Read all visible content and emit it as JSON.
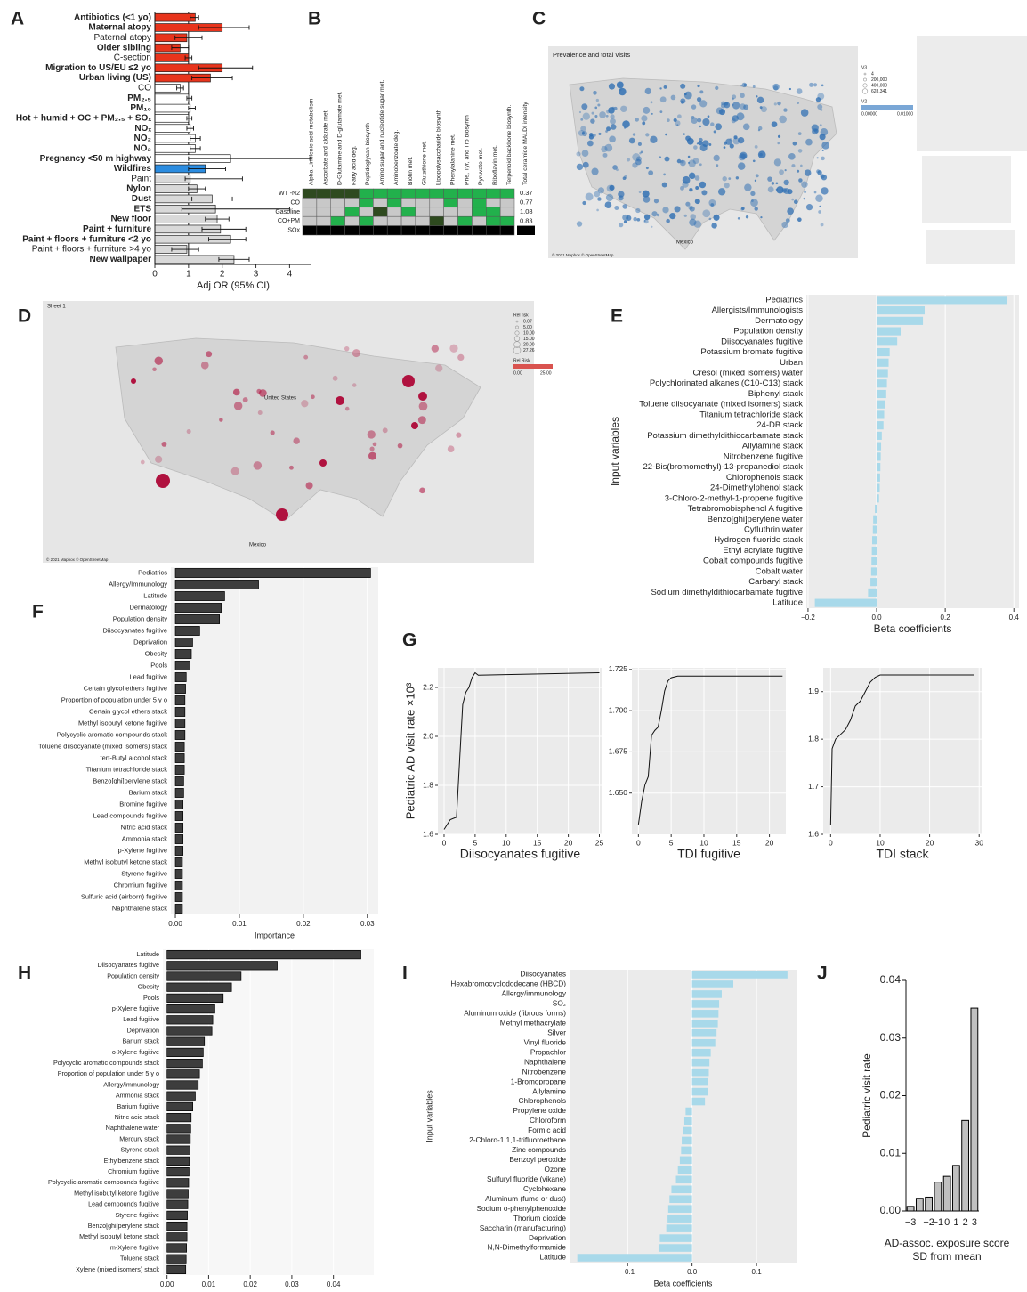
{
  "chart_data": [
    {
      "type": "hbar",
      "panel": "A",
      "xlabel": "Adj OR (95% CI)",
      "categories": [
        "Antibiotics (<1 yo)",
        "Maternal atopy",
        "Paternal atopy",
        "Older sibling",
        "C-section",
        "Migration to US/EU ≤2 yo",
        "Urban living (US)",
        "CO",
        "PM₂.₅",
        "PM₁₀",
        "Hot + humid + OC + PM₂.₅ + SOₓ",
        "NOₓ",
        "NO₂",
        "NO₃",
        "Pregnancy <50 m highway",
        "Wildfires",
        "Paint",
        "Nylon",
        "Dust",
        "ETS",
        "New floor",
        "Paint + furniture",
        "Paint + floors + furniture <2 yo",
        "Paint + floors + furniture >4 yo",
        "New wallpaper"
      ],
      "values": [
        1.2,
        2.0,
        0.95,
        0.75,
        1.0,
        2.0,
        1.65,
        0.75,
        1.0,
        1.05,
        1.0,
        1.05,
        1.2,
        1.2,
        2.25,
        1.5,
        1.05,
        1.25,
        1.7,
        1.8,
        1.85,
        1.95,
        2.25,
        0.95,
        2.35
      ],
      "ci_low": [
        1.05,
        1.3,
        0.6,
        0.5,
        0.9,
        1.3,
        1.1,
        0.65,
        0.95,
        1.0,
        0.95,
        0.95,
        1.05,
        1.05,
        1.0,
        1.0,
        0.9,
        1.0,
        1.1,
        0.8,
        1.5,
        1.4,
        1.6,
        0.5,
        1.9
      ],
      "ci_high": [
        1.3,
        2.8,
        1.4,
        1.0,
        1.1,
        2.9,
        2.3,
        0.85,
        1.1,
        1.2,
        1.1,
        1.15,
        1.35,
        1.35,
        4.6,
        2.1,
        2.6,
        1.5,
        2.3,
        4.0,
        2.2,
        2.7,
        2.7,
        1.3,
        2.8
      ],
      "colors": [
        "#e8341c",
        "#e8341c",
        "#e8341c",
        "#e8341c",
        "#e8341c",
        "#e8341c",
        "#e8341c",
        "#ffffff",
        "#ffffff",
        "#ffffff",
        "#ffffff",
        "#ffffff",
        "#ffffff",
        "#ffffff",
        "#ffffff",
        "#2b8ce0",
        "#d9d9d9",
        "#d9d9d9",
        "#d9d9d9",
        "#d9d9d9",
        "#d9d9d9",
        "#d9d9d9",
        "#d9d9d9",
        "#d9d9d9",
        "#d9d9d9"
      ],
      "label_weights": [
        "bold",
        "bold",
        "normal",
        "bold",
        "normal",
        "bold",
        "bold",
        "normal",
        "bold",
        "bold",
        "bold",
        "bold",
        "bold",
        "bold",
        "bold",
        "bold",
        "normal",
        "bold",
        "bold",
        "bold",
        "bold",
        "bold",
        "bold",
        "normal",
        "bold"
      ],
      "bar_stroke": "#222222",
      "ref_line": 1,
      "xlim": [
        0,
        4.65
      ],
      "xticks": [
        0,
        1,
        2,
        3,
        4
      ],
      "grid": false,
      "axis_lines": true
    },
    {
      "type": "heatmap",
      "panel": "B",
      "columns": [
        "Alpha-Linolenic acid metabolism",
        "Ascorbate and aldarate met.",
        "D-Glutamine and D-glutamate met.",
        "Fatty acid deg.",
        "Peptidoglycan biosynth",
        "Amino sugar and nucleotide sugar met.",
        "Aminobenzoate deg.",
        "Biotin met.",
        "Glutathione met.",
        "Lipopolysaccharide biosynth",
        "Phenylalanine met.",
        "Phe, Tyr, and Trp biosynth",
        "Pyruvate met.",
        "Riboflavin met.",
        "Terpenoid backbone biosynth."
      ],
      "value_column": "Total ceramide MALDI intensity",
      "rows": [
        "WT -N2",
        "CO",
        "Gasoline",
        "CO+PM",
        "SOx"
      ],
      "row_values": [
        0.37,
        0.77,
        1.08,
        0.83,
        null
      ],
      "cells": [
        [
          "#2e4a1f",
          "#2e4a1f",
          "#2e4a1f",
          "#2e4a1f",
          "#22b14c",
          "#22b14c",
          "#22b14c",
          "#22b14c",
          "#22b14c",
          "#22b14c",
          "#22b14c",
          "#22b14c",
          "#22b14c",
          "#22b14c",
          "#22b14c"
        ],
        [
          "#c8c8c8",
          "#c8c8c8",
          "#c8c8c8",
          "#c8c8c8",
          "#22b14c",
          "#c8c8c8",
          "#22b14c",
          "#c8c8c8",
          "#c8c8c8",
          "#c8c8c8",
          "#22b14c",
          "#c8c8c8",
          "#22b14c",
          "#c8c8c8",
          "#c8c8c8"
        ],
        [
          "#c8c8c8",
          "#c8c8c8",
          "#c8c8c8",
          "#22b14c",
          "#c8c8c8",
          "#2e4a1f",
          "#c8c8c8",
          "#22b14c",
          "#c8c8c8",
          "#c8c8c8",
          "#c8c8c8",
          "#c8c8c8",
          "#22b14c",
          "#22b14c",
          "#c8c8c8"
        ],
        [
          "#c8c8c8",
          "#c8c8c8",
          "#22b14c",
          "#c8c8c8",
          "#22b14c",
          "#c8c8c8",
          "#c8c8c8",
          "#c8c8c8",
          "#c8c8c8",
          "#2e4a1f",
          "#c8c8c8",
          "#22b14c",
          "#c8c8c8",
          "#22b14c",
          "#22b14c"
        ],
        [
          "#000000",
          "#000000",
          "#000000",
          "#000000",
          "#000000",
          "#000000",
          "#000000",
          "#000000",
          "#000000",
          "#000000",
          "#000000",
          "#000000",
          "#000000",
          "#000000",
          "#000000"
        ]
      ]
    },
    {
      "type": "map",
      "panel": "C",
      "title": "Prevalence and total visits",
      "size_legend_title": "V3",
      "size_legend_labels": [
        "4",
        "200,000",
        "400,000",
        "628,341"
      ],
      "color_legend_title": "V2",
      "color_legend_labels": [
        "0.00000",
        "0.01000"
      ],
      "place_labels": [
        "Mexico"
      ],
      "credit": "© 2021 Mapbox © OpenStreetMap",
      "color": "#2f6fb3"
    },
    {
      "type": "map",
      "panel": "D",
      "title": "Sheet 1",
      "size_legend_title": "Rel risk",
      "size_legend_labels": [
        "0.07",
        "5.00",
        "10.00",
        "15.00",
        "20.00",
        "27.26"
      ],
      "color_legend_title": "Rel Risk",
      "color_legend_labels": [
        "0.00",
        "25.00"
      ],
      "place_labels": [
        "United States",
        "Mexico"
      ],
      "credit": "© 2021 Mapbox © OpenStreetMap",
      "color": "#b0123f"
    },
    {
      "type": "hbar",
      "panel": "E",
      "xlabel": "Beta coefficients",
      "ylabel": "Input variables",
      "categories": [
        "Pediatrics",
        "Allergists/Immunologists",
        "Dermatology",
        "Population density",
        "Diisocyanates fugitive",
        "Potassium bromate fugitive",
        "Urban",
        "Cresol (mixed isomers) water",
        "Polychlorinated alkanes (C10-C13) stack",
        "Biphenyl stack",
        "Toluene diisocyanate (mixed isomers) stack",
        "Titanium tetrachloride stack",
        "24-DB stack",
        "Potassium dimethyldithiocarbamate stack",
        "Allylamine stack",
        "Nitrobenzene fugitive",
        "22-Bis(bromomethyl)-13-propanediol stack",
        "Chlorophenols stack",
        "24-Dimethylphenol stack",
        "3-Chloro-2-methyl-1-propene fugitive",
        "Tetrabromobisphenol A fugitive",
        "Benzo[ghi]perylene water",
        "Cyfluthrin water",
        "Hydrogen fluoride stack",
        "Ethyl acrylate fugitive",
        "Cobalt compounds fugitive",
        "Cobalt water",
        "Carbaryl stack",
        "Sodium dimethyldithiocarbamate fugitive",
        "Latitude"
      ],
      "values": [
        0.38,
        0.14,
        0.135,
        0.07,
        0.06,
        0.038,
        0.035,
        0.033,
        0.03,
        0.028,
        0.025,
        0.022,
        0.02,
        0.015,
        0.013,
        0.012,
        0.011,
        0.01,
        0.009,
        0.007,
        -0.005,
        -0.01,
        -0.011,
        -0.013,
        -0.014,
        -0.015,
        -0.016,
        -0.018,
        -0.025,
        -0.18
      ],
      "color": "#a8d9ea",
      "plot_bg": "#ebebeb",
      "xlim": [
        -0.205,
        0.415
      ],
      "xticks": [
        {
          "value": -0.2,
          "label": "−0.2"
        },
        {
          "value": 0,
          "label": "0.0"
        },
        0.2,
        0.4
      ],
      "grid": true
    },
    {
      "type": "hbar",
      "panel": "F",
      "xlabel": "Importance",
      "categories": [
        "Pediatrics",
        "Allergy/Immunology",
        "Latitude",
        "Dermatology",
        "Population density",
        "Diisocyanates fugitive",
        "Deprivation",
        "Obesity",
        "Pools",
        "Lead fugitive",
        "Certain glycol ethers fugitive",
        "Proportion of population under 5 y o",
        "Certain glycol ethers stack",
        "Methyl isobutyl ketone fugitive",
        "Polycyclic aromatic compounds stack",
        "Toluene diisocyanate (mixed isomers) stack",
        "tert-Butyl alcohol stack",
        "Titanium tetrachloride stack",
        "Benzo[ghi]perylene stack",
        "Barium stack",
        "Bromine fugitive",
        "Lead compounds fugitive",
        "Nitric acid stack",
        "Ammonia stack",
        "p-Xylene fugitive",
        "Methyl isobutyl ketone stack",
        "Styrene fugitive",
        "Chromium fugitive",
        "Sulfuric acid (airborn) fugitive",
        "Naphthalene stack"
      ],
      "values": [
        0.0305,
        0.013,
        0.0077,
        0.0072,
        0.0069,
        0.0038,
        0.0027,
        0.0025,
        0.0023,
        0.0017,
        0.0016,
        0.0015,
        0.0015,
        0.0015,
        0.0015,
        0.0014,
        0.0014,
        0.0014,
        0.0013,
        0.0013,
        0.0012,
        0.0012,
        0.0012,
        0.0012,
        0.0012,
        0.0011,
        0.0011,
        0.0011,
        0.0011,
        0.0011
      ],
      "color": "#3d3d3d",
      "bar_stroke": "#000000",
      "plot_bg": "#f2f2f2",
      "xlim": [
        -0.0007,
        0.0317
      ],
      "xticks": [
        {
          "value": 0,
          "label": "0.00"
        },
        0.01,
        0.02,
        0.03
      ],
      "grid": true
    },
    {
      "type": "line",
      "panel": "G",
      "ylabel": "Pediatric AD visit rate ×10³",
      "xlabel": "Diisocyanates fugitive",
      "x": [
        0,
        0.5,
        1,
        2,
        2.5,
        3,
        3.5,
        4,
        4.5,
        5,
        5.5,
        25
      ],
      "values": [
        1.62,
        1.64,
        1.66,
        1.67,
        1.9,
        2.13,
        2.18,
        2.2,
        2.24,
        2.26,
        2.25,
        2.26
      ],
      "xlim": [
        -1,
        25.5
      ],
      "ylim": [
        1.6,
        2.28
      ],
      "xticks": [
        0,
        5,
        10,
        15,
        20,
        25
      ],
      "yticks": [
        1.6,
        1.8,
        {
          "value": 2,
          "label": "2.0"
        },
        2.2
      ],
      "plot_bg": "#ebebeb",
      "grid": true,
      "color": "#111111"
    },
    {
      "type": "line",
      "xlabel": "TDI fugitive",
      "x": [
        0,
        0.5,
        1,
        1.5,
        2,
        2.5,
        3,
        3.5,
        4,
        4.5,
        5,
        6,
        22
      ],
      "values": [
        1.631,
        1.645,
        1.655,
        1.66,
        1.685,
        1.688,
        1.69,
        1.7,
        1.712,
        1.718,
        1.72,
        1.721,
        1.721
      ],
      "xlim": [
        -1,
        22.5
      ],
      "ylim": [
        1.625,
        1.726
      ],
      "xticks": [
        0,
        5,
        10,
        15,
        20
      ],
      "yticks": [
        {
          "value": 1.65,
          "label": "1.650"
        },
        1.675,
        {
          "value": 1.7,
          "label": "1.700"
        },
        1.725
      ],
      "plot_bg": "#ebebeb",
      "grid": true,
      "color": "#111111"
    },
    {
      "type": "line",
      "xlabel": "TDI stack",
      "x": [
        0,
        0.3,
        1,
        2,
        3,
        4,
        5,
        6,
        7,
        8,
        9,
        10,
        29
      ],
      "values": [
        1.62,
        1.78,
        1.8,
        1.81,
        1.82,
        1.84,
        1.87,
        1.88,
        1.9,
        1.92,
        1.93,
        1.935,
        1.935
      ],
      "xlim": [
        -1.5,
        30.5
      ],
      "ylim": [
        1.6,
        1.95
      ],
      "xticks": [
        0,
        10,
        20,
        30
      ],
      "yticks": [
        1.6,
        1.7,
        1.8,
        1.9
      ],
      "plot_bg": "#ebebeb",
      "grid": true,
      "color": "#111111"
    },
    {
      "type": "hbar",
      "panel": "H",
      "xlabel": "Importance",
      "categories": [
        "Latitude",
        "Diisocyanates fugitive",
        "Population density",
        "Obesity",
        "Pools",
        "p-Xylene fugitive",
        "Lead fugitive",
        "Deprivation",
        "Barium stack",
        "o-Xylene fugitive",
        "Polycyclic aromatic compounds stack",
        "Proportion of population under 5 y o",
        "Allergy/immunology",
        "Ammonia stack",
        "Barium fugitive",
        "Nitric acid stack",
        "Naphthalene water",
        "Mercury stack",
        "Styrene stack",
        "Ethylbenzene stack",
        "Chromium fugitive",
        "Polycyclic aromatic compounds fugitive",
        "Methyl isobutyl ketone fugitive",
        "Lead compounds fugitive",
        "Styrene fugitive",
        "Benzo[ghi]perylene stack",
        "Methyl isobutyl ketone stack",
        "m-Xylene fugitive",
        "Toluene stack",
        "Xylene (mixed isomers) stack"
      ],
      "values": [
        0.0466,
        0.0265,
        0.0178,
        0.0155,
        0.0135,
        0.0115,
        0.011,
        0.0108,
        0.009,
        0.0087,
        0.0085,
        0.0078,
        0.0075,
        0.0068,
        0.0062,
        0.0058,
        0.0057,
        0.0056,
        0.0055,
        0.0054,
        0.0053,
        0.0052,
        0.0051,
        0.005,
        0.0049,
        0.0048,
        0.0048,
        0.0047,
        0.0046,
        0.0045
      ],
      "color": "#3d3d3d",
      "bar_stroke": "#000000",
      "plot_bg": "#f7f7f7",
      "xlim": [
        -0.001,
        0.0497
      ],
      "xticks": [
        {
          "value": 0,
          "label": "0.00"
        },
        0.01,
        0.02,
        0.03,
        0.04
      ],
      "grid": true
    },
    {
      "type": "hbar",
      "panel": "I",
      "xlabel": "Beta coefficients",
      "ylabel": "Input variables",
      "categories": [
        "Diisocyanates",
        "Hexabromocyclododecane (HBCD)",
        "Allergy/immunology",
        "SO₂",
        "Aluminum oxide (fibrous forms)",
        "Methyl methacrylate",
        "Silver",
        "Vinyl fluoride",
        "Propachlor",
        "Naphthalene",
        "Nitrobenzene",
        "1-Bromopropane",
        "Allylamine",
        "Chlorophenols",
        "Propylene oxide",
        "Chloroform",
        "Formic acid",
        "2-Chloro-1,1,1-trifluoroethane",
        "Zinc compounds",
        "Benzoyl peroxide",
        "Ozone",
        "Sulfuryl fluoride (vikane)",
        "Cyclohexane",
        "Aluminum (fume or dust)",
        "Sodium o-phenylphenoxide",
        "Thorium dioxide",
        "Saccharin (manufacturing)",
        "Deprivation",
        "N,N-Dimethylformamide",
        "Latitude"
      ],
      "values": [
        0.148,
        0.064,
        0.046,
        0.042,
        0.041,
        0.04,
        0.038,
        0.036,
        0.029,
        0.027,
        0.026,
        0.025,
        0.024,
        0.02,
        -0.01,
        -0.012,
        -0.014,
        -0.016,
        -0.017,
        -0.019,
        -0.022,
        -0.025,
        -0.032,
        -0.035,
        -0.037,
        -0.038,
        -0.04,
        -0.05,
        -0.052,
        -0.178
      ],
      "color": "#a8d9ea",
      "plot_bg": "#ebebeb",
      "xlim": [
        -0.19,
        0.162
      ],
      "xticks": [
        {
          "value": -0.1,
          "label": "−0.1"
        },
        {
          "value": 0,
          "label": "0.0"
        },
        0.1
      ],
      "grid": true
    },
    {
      "type": "bar",
      "panel": "J",
      "ylabel": "Pediatric visit rate",
      "xlabel_lines": [
        "AD-assoc. exposure score",
        "SD from mean"
      ],
      "categories": [
        "−3",
        null,
        "−2",
        "−1",
        "0",
        "1",
        "2",
        "3"
      ],
      "values": [
        0.0008,
        0.0022,
        0.0024,
        0.005,
        0.006,
        0.0079,
        0.0157,
        0.0352
      ],
      "color": "#c0c0c0",
      "bar_stroke": "#000000",
      "ylim": [
        0,
        0.04
      ],
      "yticks": [
        {
          "value": 0,
          "label": "0.00"
        },
        0.01,
        0.02,
        0.03,
        0.04
      ],
      "grid": false
    }
  ]
}
